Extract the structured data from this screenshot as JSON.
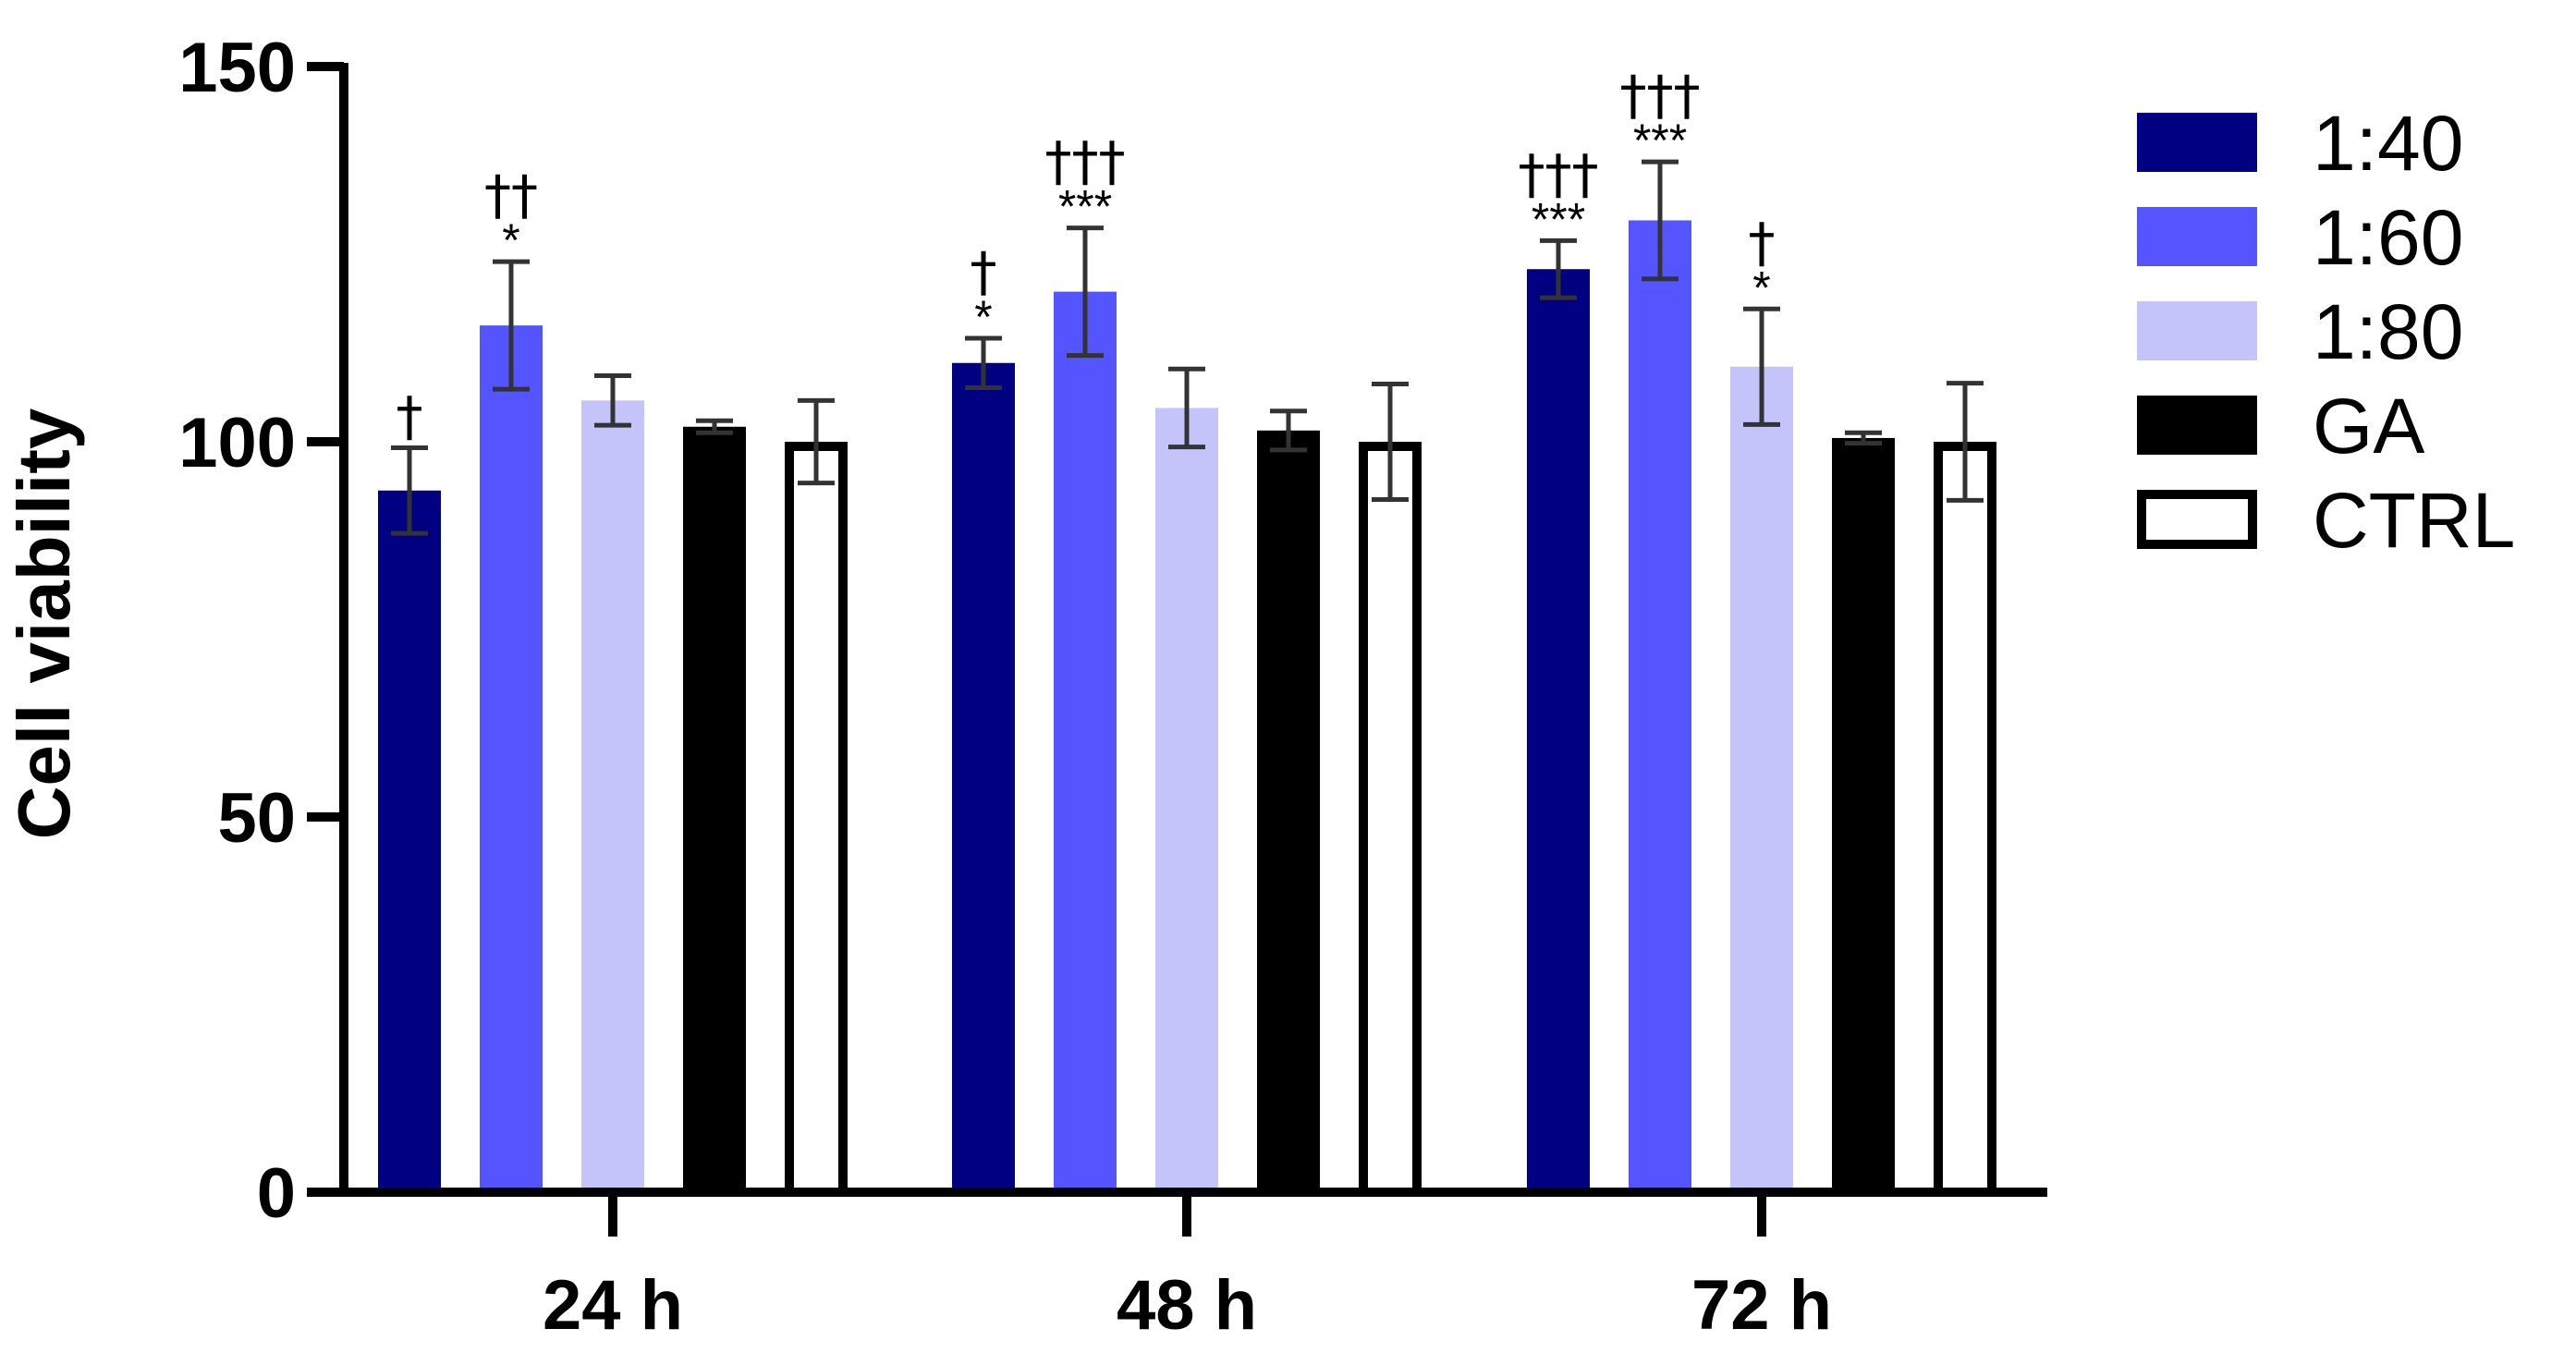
{
  "chart_data": {
    "type": "bar",
    "ylabel": "Cell viability",
    "xlabel": "",
    "ylim": [
      0,
      150
    ],
    "yticks": [
      "0",
      "50",
      "100",
      "150"
    ],
    "categories": [
      "24 h",
      "48 h",
      "72 h"
    ],
    "legend_position": "right",
    "grid": false,
    "series": [
      {
        "name": "1:40",
        "color": "#000080",
        "outline": false,
        "values": [
          93.5,
          110.5,
          123
        ],
        "errors": [
          5.7,
          3.3,
          3.8
        ],
        "stars": [
          "",
          "*",
          "***"
        ],
        "daggers": [
          "†",
          "†",
          "†††"
        ]
      },
      {
        "name": "1:60",
        "color": "#5555ff",
        "outline": false,
        "values": [
          115.5,
          120,
          129.5
        ],
        "errors": [
          8.5,
          8.5,
          7.8
        ],
        "stars": [
          "*",
          "***",
          "***"
        ],
        "daggers": [
          "††",
          "†††",
          "†††"
        ]
      },
      {
        "name": "1:80",
        "color": "#c4c4fb",
        "outline": false,
        "values": [
          105.5,
          104.5,
          110
        ],
        "errors": [
          3.3,
          5.2,
          7.7
        ],
        "stars": [
          "",
          "",
          "*"
        ],
        "daggers": [
          "",
          "",
          "†"
        ]
      },
      {
        "name": "GA",
        "color": "#000000",
        "outline": false,
        "values": [
          102,
          101.5,
          100.5
        ],
        "errors": [
          0.8,
          2.6,
          0.7
        ],
        "stars": [
          "",
          "",
          ""
        ],
        "daggers": [
          "",
          "",
          ""
        ]
      },
      {
        "name": "CTRL",
        "color": "#ffffff",
        "outline": true,
        "values": [
          100,
          100,
          100
        ],
        "errors": [
          5.5,
          7.7,
          7.8
        ],
        "stars": [
          "",
          "",
          ""
        ],
        "daggers": [
          "",
          "",
          ""
        ]
      }
    ]
  }
}
